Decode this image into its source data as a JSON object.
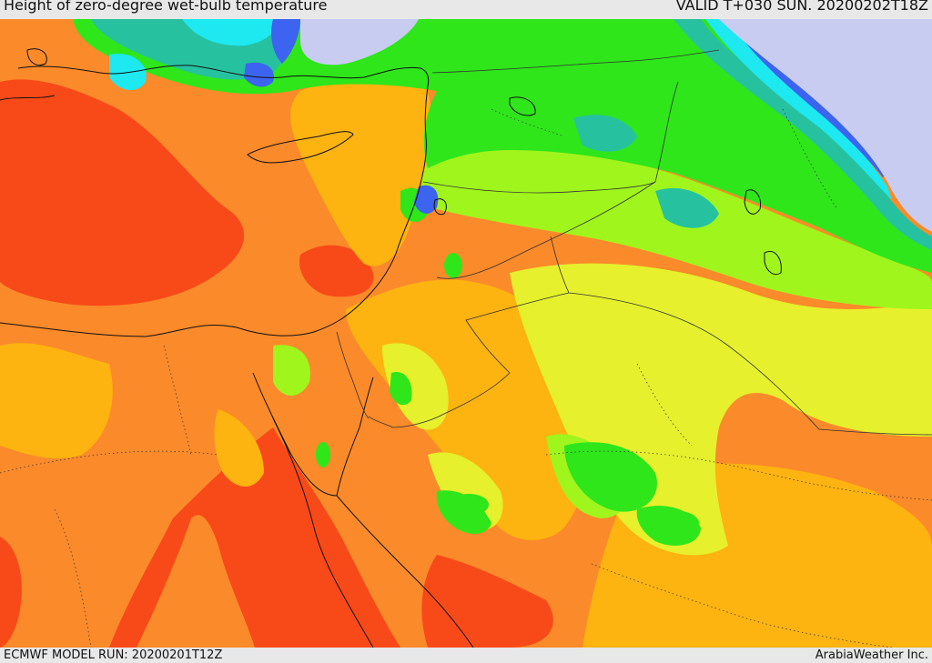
{
  "header": {
    "title": "Height of zero-degree wet-bulb temperature",
    "valid": "VALID T+030 SUN. 20200202T18Z"
  },
  "footer": {
    "model_run": "ECMWF MODEL RUN: 20200201T12Z",
    "credit": "ArabiaWeather Inc."
  },
  "palette": {
    "deep_red": "#f84a18",
    "orange": "#fb8a2a",
    "amber": "#fdb310",
    "yellow": "#e6f02c",
    "yellow_green": "#a0f51c",
    "green": "#2ee61a",
    "teal": "#26c2a0",
    "cyan": "#1ee8f0",
    "blue": "#3c64f0",
    "lavender": "#c8ccf0",
    "land_line": "#111111",
    "border_line": "#333333"
  }
}
